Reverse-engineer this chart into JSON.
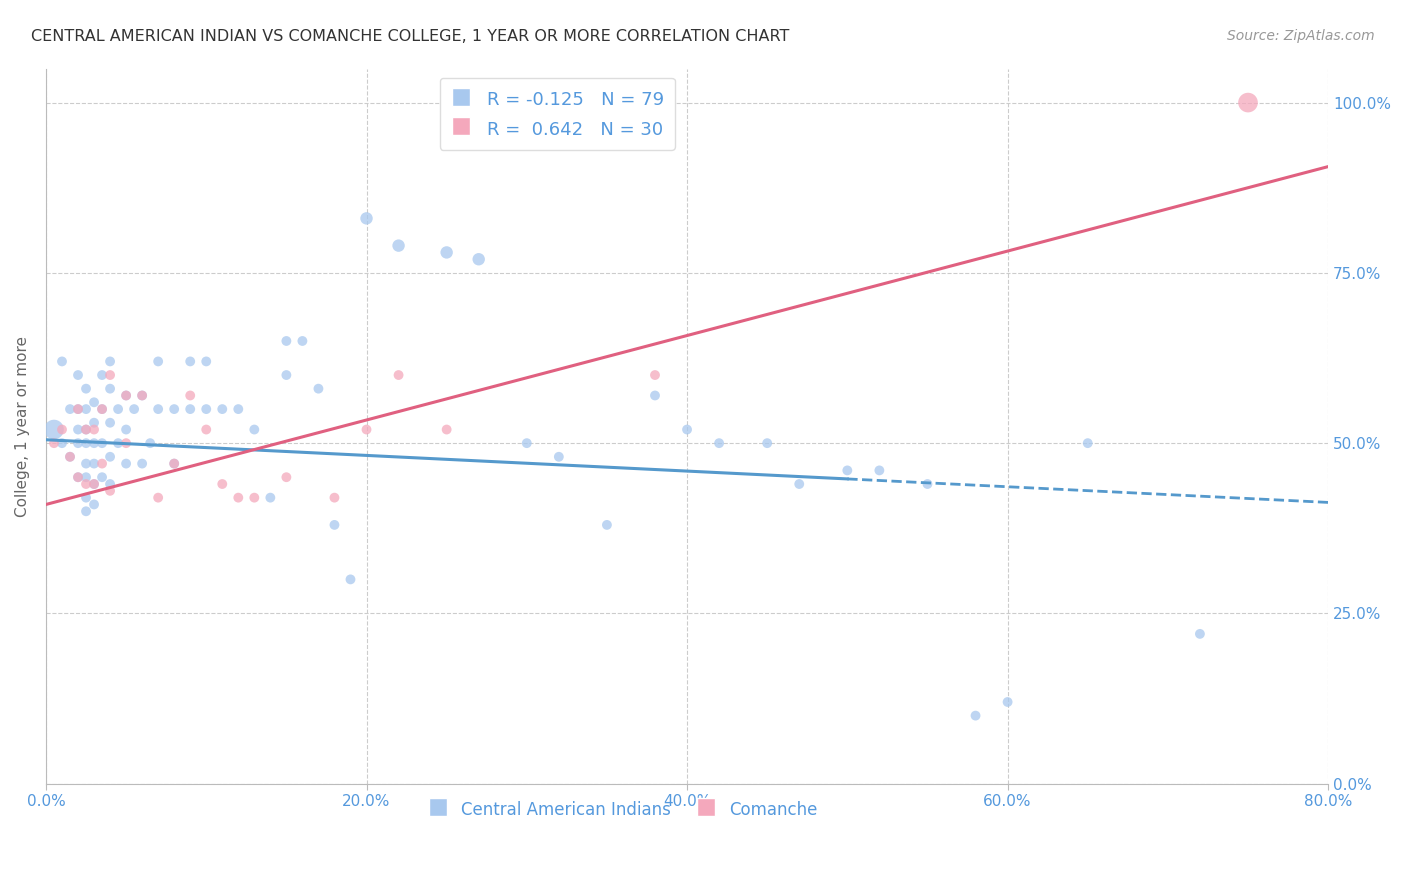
{
  "title": "CENTRAL AMERICAN INDIAN VS COMANCHE COLLEGE, 1 YEAR OR MORE CORRELATION CHART",
  "source": "Source: ZipAtlas.com",
  "ylabel": "College, 1 year or more",
  "xlim": [
    0.0,
    0.8
  ],
  "ylim": [
    0.0,
    1.05
  ],
  "yticks": [
    0.0,
    0.25,
    0.5,
    0.75,
    1.0
  ],
  "xticks": [
    0.0,
    0.2,
    0.4,
    0.6,
    0.8
  ],
  "blue_R": -0.125,
  "blue_N": 79,
  "pink_R": 0.642,
  "pink_N": 30,
  "blue_color": "#A8C8EE",
  "pink_color": "#F4A8BC",
  "blue_line_color": "#5599CC",
  "pink_line_color": "#E06080",
  "background_color": "#FFFFFF",
  "grid_color": "#CCCCCC",
  "tick_label_color": "#5599DD",
  "title_color": "#333333",
  "blue_line_solid_end": 0.5,
  "blue_line_full_end": 0.8,
  "blue_intercept": 0.505,
  "blue_slope": -0.115,
  "pink_intercept": 0.41,
  "pink_slope": 0.62,
  "blue_x": [
    0.005,
    0.01,
    0.01,
    0.015,
    0.015,
    0.02,
    0.02,
    0.02,
    0.02,
    0.02,
    0.025,
    0.025,
    0.025,
    0.025,
    0.025,
    0.025,
    0.025,
    0.025,
    0.03,
    0.03,
    0.03,
    0.03,
    0.03,
    0.03,
    0.035,
    0.035,
    0.035,
    0.035,
    0.04,
    0.04,
    0.04,
    0.04,
    0.04,
    0.045,
    0.045,
    0.05,
    0.05,
    0.05,
    0.055,
    0.06,
    0.06,
    0.065,
    0.07,
    0.07,
    0.08,
    0.08,
    0.09,
    0.09,
    0.1,
    0.1,
    0.11,
    0.12,
    0.13,
    0.14,
    0.15,
    0.15,
    0.16,
    0.17,
    0.18,
    0.19,
    0.2,
    0.22,
    0.25,
    0.27,
    0.3,
    0.32,
    0.35,
    0.38,
    0.4,
    0.42,
    0.45,
    0.47,
    0.5,
    0.52,
    0.55,
    0.58,
    0.6,
    0.65,
    0.72
  ],
  "blue_y": [
    0.52,
    0.62,
    0.5,
    0.55,
    0.48,
    0.6,
    0.55,
    0.52,
    0.5,
    0.45,
    0.58,
    0.55,
    0.52,
    0.5,
    0.47,
    0.45,
    0.42,
    0.4,
    0.56,
    0.53,
    0.5,
    0.47,
    0.44,
    0.41,
    0.6,
    0.55,
    0.5,
    0.45,
    0.62,
    0.58,
    0.53,
    0.48,
    0.44,
    0.55,
    0.5,
    0.57,
    0.52,
    0.47,
    0.55,
    0.57,
    0.47,
    0.5,
    0.62,
    0.55,
    0.55,
    0.47,
    0.62,
    0.55,
    0.62,
    0.55,
    0.55,
    0.55,
    0.52,
    0.42,
    0.65,
    0.6,
    0.65,
    0.58,
    0.38,
    0.3,
    0.83,
    0.79,
    0.78,
    0.77,
    0.5,
    0.48,
    0.38,
    0.57,
    0.52,
    0.5,
    0.5,
    0.44,
    0.46,
    0.46,
    0.44,
    0.1,
    0.12,
    0.5,
    0.22
  ],
  "blue_sizes": [
    200,
    50,
    50,
    50,
    50,
    50,
    50,
    50,
    50,
    50,
    50,
    50,
    50,
    50,
    50,
    50,
    50,
    50,
    50,
    50,
    50,
    50,
    50,
    50,
    50,
    50,
    50,
    50,
    50,
    50,
    50,
    50,
    50,
    50,
    50,
    50,
    50,
    50,
    50,
    50,
    50,
    50,
    50,
    50,
    50,
    50,
    50,
    50,
    50,
    50,
    50,
    50,
    50,
    50,
    50,
    50,
    50,
    50,
    50,
    50,
    80,
    80,
    80,
    80,
    50,
    50,
    50,
    50,
    50,
    50,
    50,
    50,
    50,
    50,
    50,
    50,
    50,
    50,
    50
  ],
  "pink_x": [
    0.005,
    0.01,
    0.015,
    0.02,
    0.02,
    0.025,
    0.025,
    0.03,
    0.03,
    0.035,
    0.035,
    0.04,
    0.04,
    0.05,
    0.05,
    0.06,
    0.07,
    0.08,
    0.09,
    0.1,
    0.11,
    0.12,
    0.13,
    0.15,
    0.18,
    0.2,
    0.22,
    0.25,
    0.38,
    0.75
  ],
  "pink_y": [
    0.5,
    0.52,
    0.48,
    0.55,
    0.45,
    0.52,
    0.44,
    0.52,
    0.44,
    0.55,
    0.47,
    0.6,
    0.43,
    0.57,
    0.5,
    0.57,
    0.42,
    0.47,
    0.57,
    0.52,
    0.44,
    0.42,
    0.42,
    0.45,
    0.42,
    0.52,
    0.6,
    0.52,
    0.6,
    1.0
  ],
  "pink_sizes": [
    50,
    50,
    50,
    50,
    50,
    50,
    50,
    50,
    50,
    50,
    50,
    50,
    50,
    50,
    50,
    50,
    50,
    50,
    50,
    50,
    50,
    50,
    50,
    50,
    50,
    50,
    50,
    50,
    50,
    200
  ]
}
